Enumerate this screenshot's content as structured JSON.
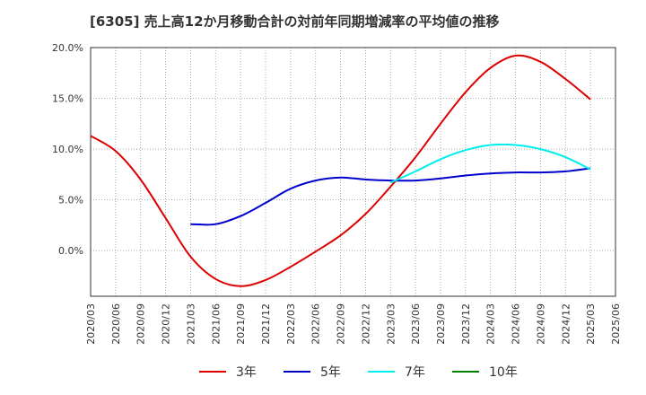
{
  "chart_data": {
    "type": "line",
    "title": "[6305]  売上高12か月移動合計の対前年同期増減率の平均値の推移",
    "xlabel": "",
    "ylabel": "",
    "ylim": [
      -4.5,
      20
    ],
    "yticks": [
      0,
      5,
      10,
      15,
      20
    ],
    "ytick_labels": [
      "0.0%",
      "5.0%",
      "10.0%",
      "15.0%",
      "20.0%"
    ],
    "x_categories": [
      "2020/03",
      "2020/06",
      "2020/09",
      "2020/12",
      "2021/03",
      "2021/06",
      "2021/09",
      "2021/12",
      "2022/03",
      "2022/06",
      "2022/09",
      "2022/12",
      "2023/03",
      "2023/06",
      "2023/09",
      "2023/12",
      "2024/03",
      "2024/06",
      "2024/09",
      "2024/12",
      "2025/03",
      "2025/06"
    ],
    "grid": true,
    "legend_position": "bottom",
    "series": [
      {
        "name": "3年",
        "color": "#dd0000",
        "values": [
          11.3,
          9.8,
          7.0,
          3.2,
          -0.6,
          -2.8,
          -3.5,
          -2.9,
          -1.6,
          -0.1,
          1.5,
          3.6,
          6.3,
          9.2,
          12.5,
          15.6,
          18.0,
          19.2,
          18.6,
          16.9,
          14.9,
          null
        ]
      },
      {
        "name": "5年",
        "color": "#0000cc",
        "values": [
          null,
          null,
          null,
          null,
          2.6,
          2.6,
          3.4,
          4.7,
          6.1,
          6.9,
          7.2,
          7.0,
          6.9,
          6.9,
          7.1,
          7.4,
          7.6,
          7.7,
          7.7,
          7.8,
          8.1,
          null
        ]
      },
      {
        "name": "7年",
        "color": "#00eeee",
        "values": [
          null,
          null,
          null,
          null,
          null,
          null,
          null,
          null,
          null,
          null,
          null,
          null,
          6.7,
          7.8,
          9.0,
          9.9,
          10.4,
          10.4,
          10.0,
          9.2,
          8.0,
          null
        ]
      },
      {
        "name": "10年",
        "color": "#008000",
        "values": [
          null,
          null,
          null,
          null,
          null,
          null,
          null,
          null,
          null,
          null,
          null,
          null,
          null,
          null,
          null,
          null,
          null,
          null,
          null,
          null,
          null,
          null
        ]
      }
    ]
  }
}
